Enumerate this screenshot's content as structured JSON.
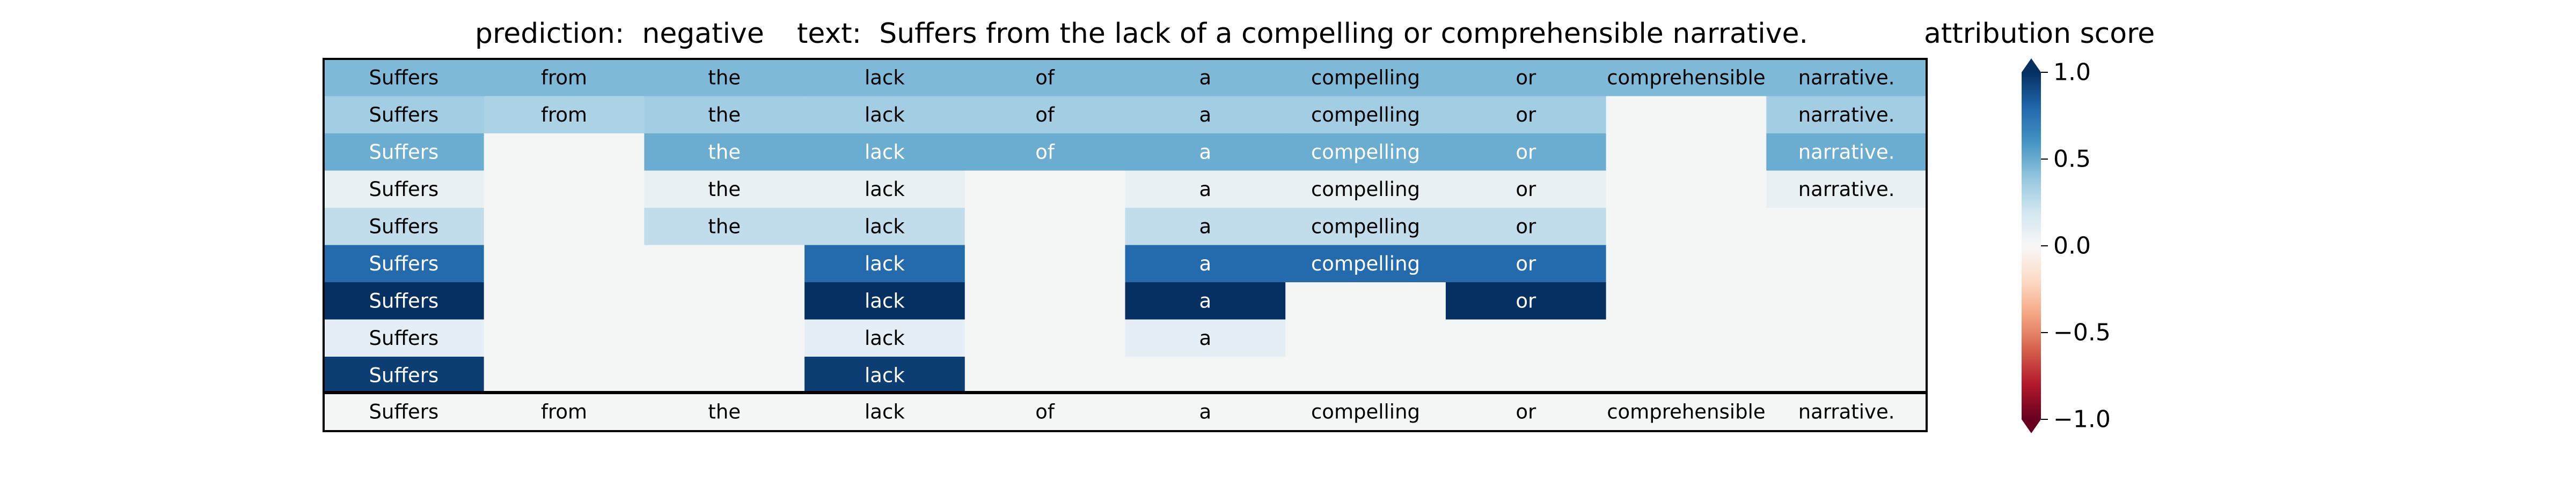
{
  "chart_data": {
    "type": "heatmap",
    "title_prediction": "prediction:  negative",
    "title_text": "text:  Suffers from the lack of a compelling or comprehensible narrative.",
    "colorbar_label": "attribution score",
    "tokens": [
      "Suffers",
      "from",
      "the",
      "lack",
      "of",
      "a",
      "compelling",
      "or",
      "comprehensible",
      "narrative."
    ],
    "rows": [
      [
        0.45,
        0.45,
        0.45,
        0.45,
        0.45,
        0.45,
        0.45,
        0.45,
        0.45,
        0.45
      ],
      [
        0.35,
        0.32,
        0.35,
        0.35,
        0.35,
        0.35,
        0.35,
        0.35,
        null,
        0.35
      ],
      [
        0.5,
        null,
        0.5,
        0.5,
        0.5,
        0.5,
        0.5,
        0.5,
        null,
        0.5
      ],
      [
        0.08,
        null,
        0.08,
        0.08,
        null,
        0.08,
        0.08,
        0.08,
        null,
        0.08
      ],
      [
        0.25,
        null,
        0.25,
        0.25,
        null,
        0.25,
        0.25,
        0.25,
        null,
        null
      ],
      [
        0.78,
        null,
        null,
        0.78,
        null,
        0.78,
        0.78,
        0.78,
        null,
        null
      ],
      [
        1.0,
        null,
        null,
        1.0,
        null,
        1.0,
        null,
        1.0,
        null,
        null
      ],
      [
        0.1,
        null,
        null,
        0.1,
        null,
        0.1,
        null,
        null,
        null,
        null
      ],
      [
        0.95,
        null,
        null,
        0.95,
        null,
        null,
        null,
        null,
        null,
        null
      ]
    ],
    "colorbar_ticks": [
      "1.0",
      "0.5",
      "0.0",
      "−0.5",
      "−1.0"
    ],
    "colorbar_range": [
      -1.0,
      1.0
    ],
    "colormap": "RdBu",
    "empty_cell_color": "#f4f6f6"
  }
}
